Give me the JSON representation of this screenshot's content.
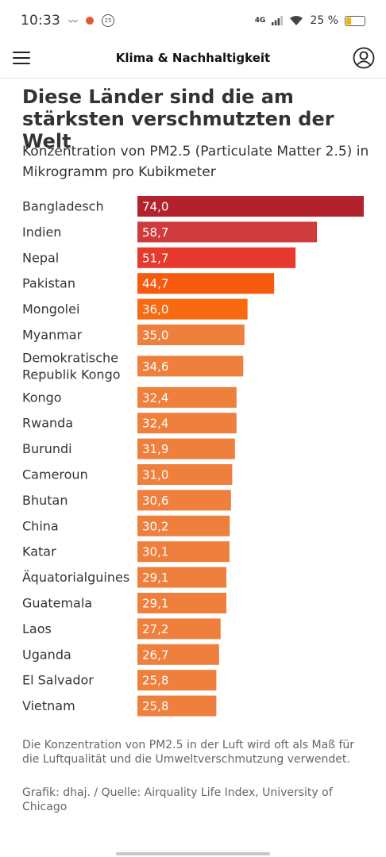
{
  "status_bar": {
    "time": "10:33",
    "notification_badge": "25",
    "network": "4G",
    "battery": "25 %"
  },
  "header": {
    "title": "Klima & Nachhaltigkeit",
    "menu_icon": "hamburger-menu-icon",
    "account_icon": "user-account-icon"
  },
  "chart_data": {
    "type": "bar",
    "orientation": "horizontal",
    "title": "Diese Länder sind die am stärksten verschmutzten der Welt",
    "subtitle": "Konzentration von PM2.5 (Particulate Matter 2.5) in Mikrogramm pro Kubikmeter",
    "categories": [
      "Bangladesch",
      "Indien",
      "Nepal",
      "Pakistan",
      "Mongolei",
      "Myanmar",
      "Demokratische Republik Kongo",
      "Kongo",
      "Rwanda",
      "Burundi",
      "Cameroun",
      "Bhutan",
      "China",
      "Katar",
      "Äquatorialguines",
      "Guatemala",
      "Laos",
      "Uganda",
      "El Salvador",
      "Vietnam"
    ],
    "values": [
      74.0,
      58.7,
      51.7,
      44.7,
      36.0,
      35.0,
      34.6,
      32.4,
      32.4,
      31.9,
      31.0,
      30.6,
      30.2,
      30.1,
      29.1,
      29.1,
      27.2,
      26.7,
      25.8,
      25.8
    ],
    "value_labels": [
      "74,0",
      "58,7",
      "51,7",
      "44,7",
      "36,0",
      "35,0",
      "34,6",
      "32,4",
      "32,4",
      "31,9",
      "31,0",
      "30,6",
      "30,2",
      "30,1",
      "29,1",
      "29,1",
      "27,2",
      "26,7",
      "25,8",
      "25,8"
    ],
    "bar_colors": [
      "#b3222c",
      "#cf3a3c",
      "#e8392d",
      "#f75a0f",
      "#f86a12",
      "#ef7f3c",
      "#ef7f3c",
      "#ef7f3c",
      "#ef7f3c",
      "#ef7f3c",
      "#ef7f3c",
      "#ef7f3c",
      "#ef7f3c",
      "#ef7f3c",
      "#ef7f3c",
      "#ef7f3c",
      "#ef7f3c",
      "#ef7f3c",
      "#ef7f3c",
      "#ef7f3c"
    ],
    "xlim": [
      0,
      74.0
    ],
    "grid": false,
    "legend": "none"
  },
  "footnote": "Die Konzentration von PM2.5 in der Luft wird oft als Maß für die Luftqualität und die Umweltverschmutzung verwendet.",
  "source": "Grafik: dhaj. / Quelle: Airquality Life Index, University of Chicago"
}
